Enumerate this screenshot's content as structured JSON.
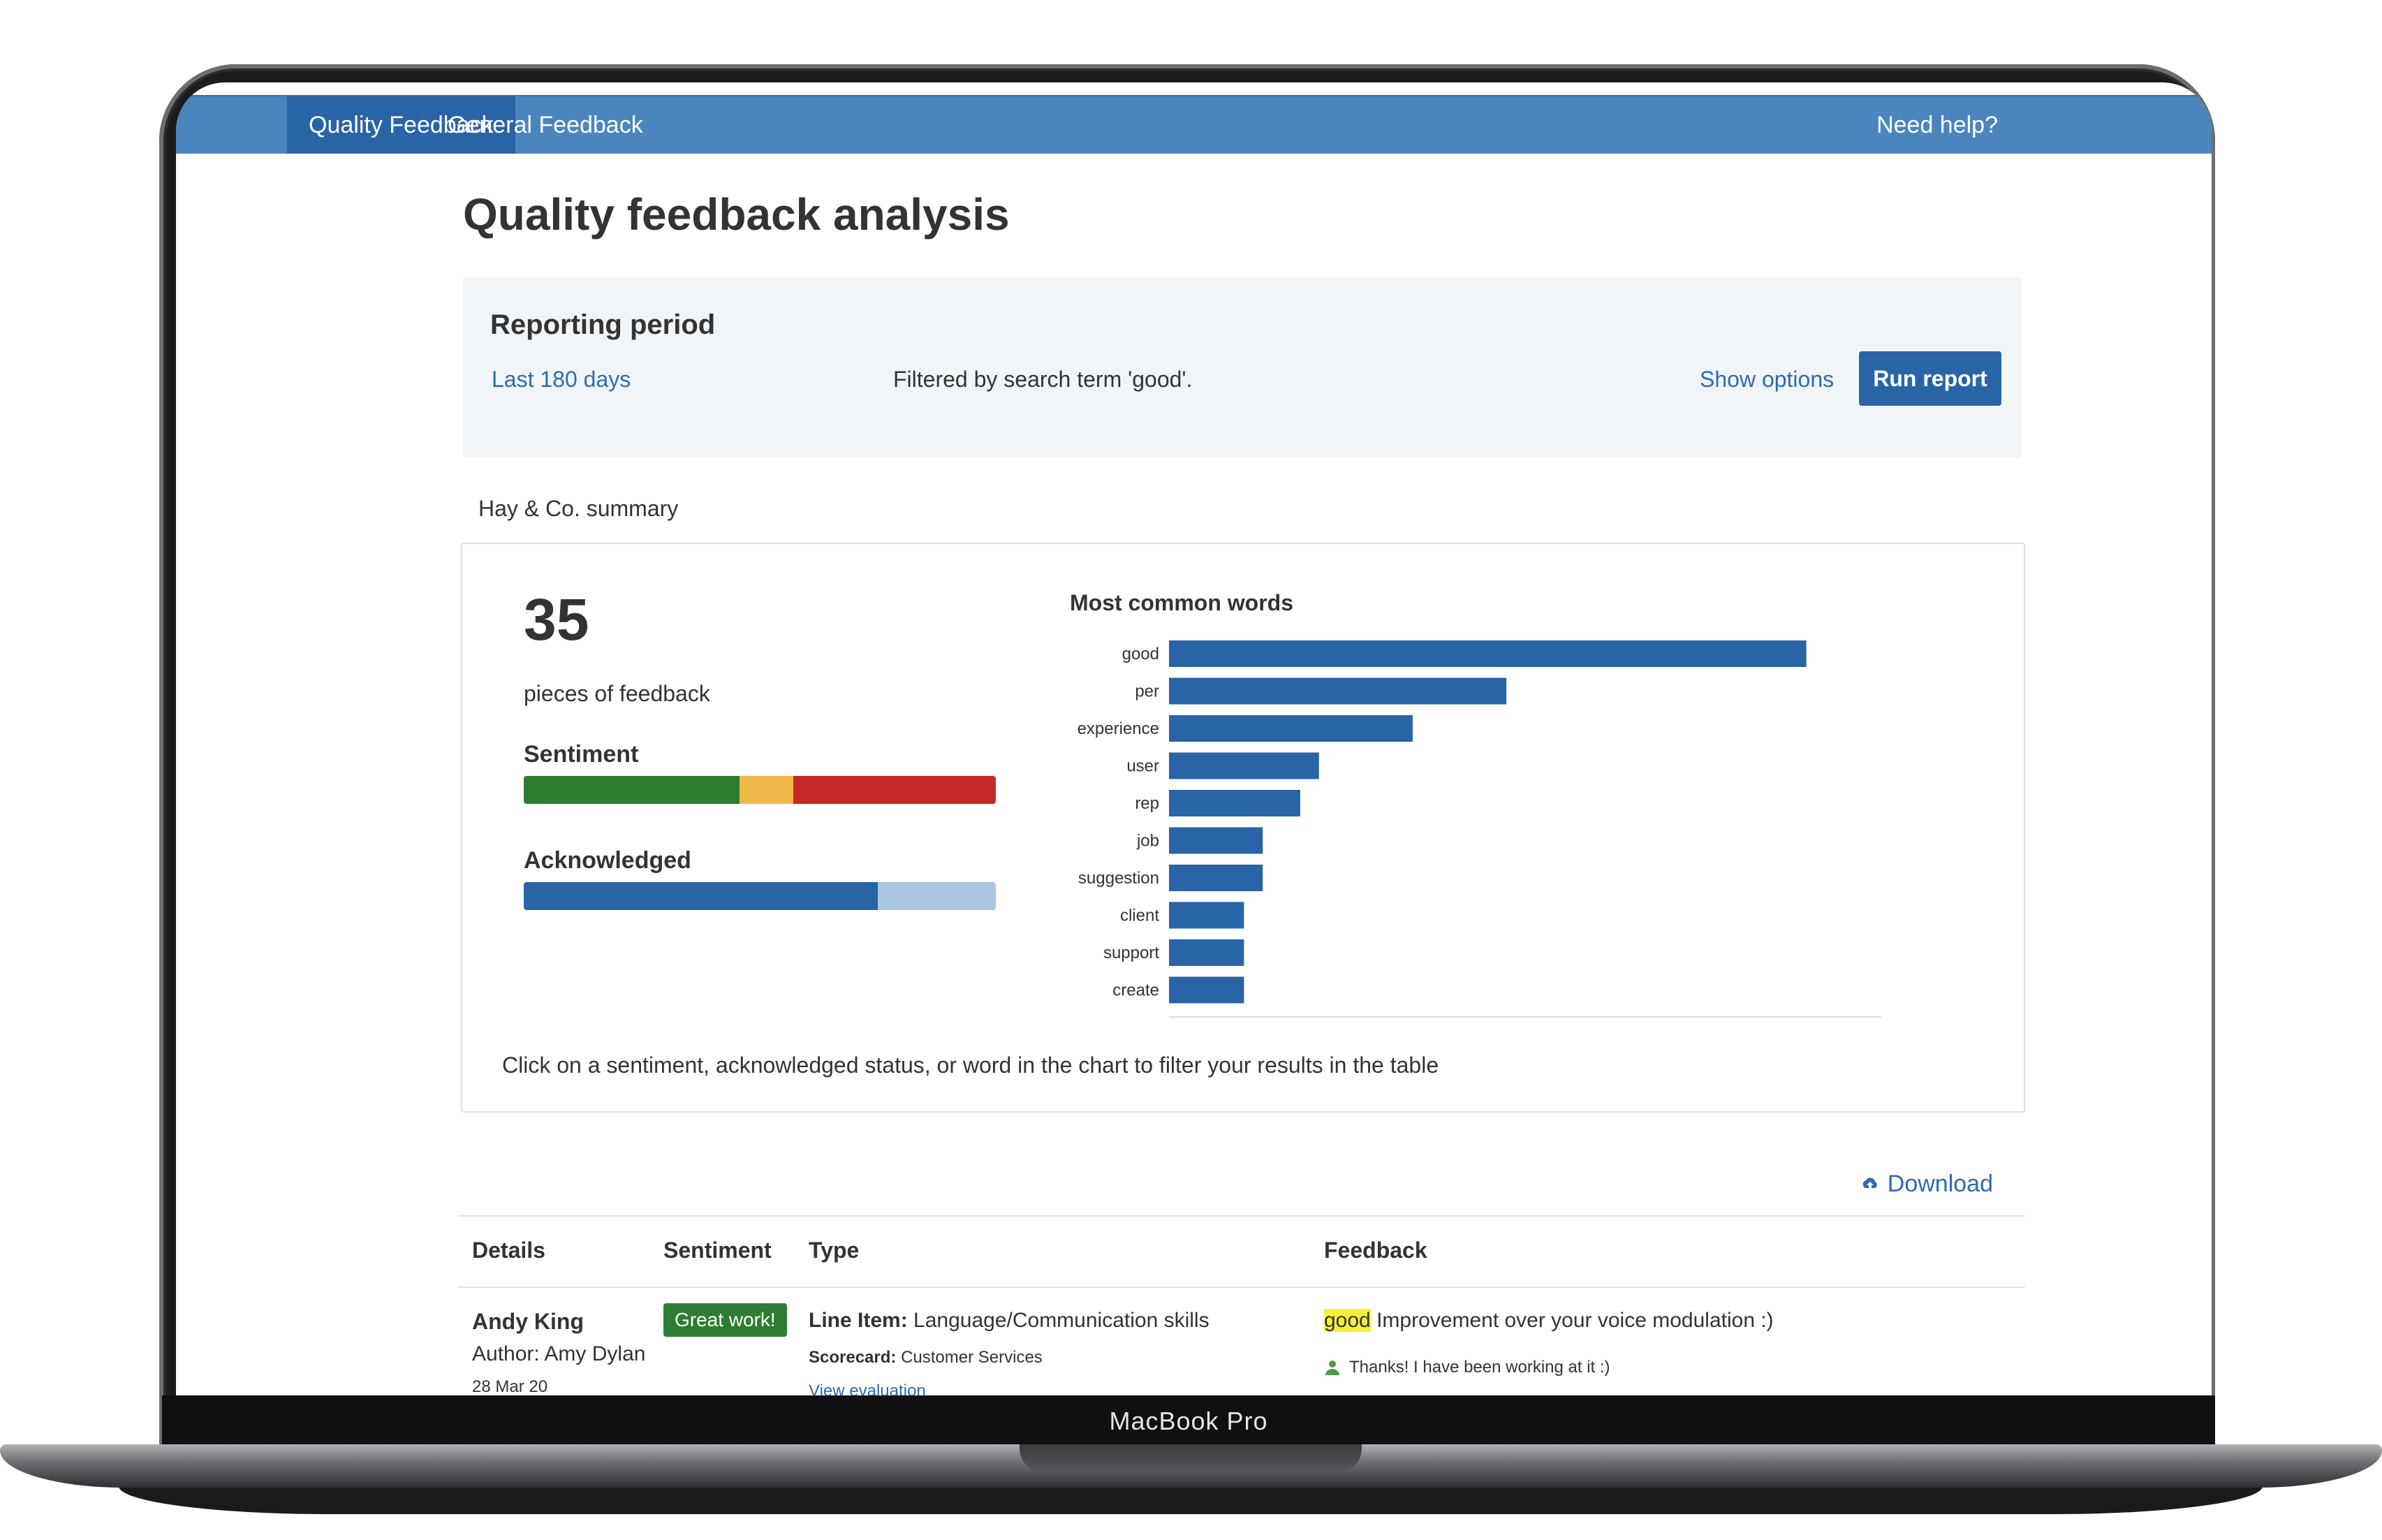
{
  "nav": {
    "tabs": [
      {
        "label": "Quality Feedback",
        "active": true
      },
      {
        "label": "General Feedback",
        "active": false
      }
    ],
    "help_label": "Need help?"
  },
  "page": {
    "title": "Quality feedback analysis"
  },
  "reporting": {
    "heading": "Reporting period",
    "period_label": "Last 180 days",
    "filter_text": "Filtered by search term 'good'.",
    "show_options_label": "Show options",
    "run_report_label": "Run report"
  },
  "summary": {
    "label": "Hay & Co. summary",
    "count": "35",
    "count_caption": "pieces of feedback",
    "sentiment_label": "Sentiment",
    "sentiment_fractions": {
      "positive": 0.457,
      "neutral": 0.114,
      "negative": 0.429
    },
    "acknowledged_label": "Acknowledged",
    "acknowledged_fraction": 0.75,
    "hint": "Click on a sentiment, acknowledged status, or word in the chart to filter your results in the table",
    "colors": {
      "positive": "#2e7d2e",
      "neutral": "#f1b84a",
      "negative": "#c62828",
      "acknowledged": "#2964a6",
      "unacknowledged": "#a9c7e2",
      "bar": "#2964a6"
    }
  },
  "chart_data": {
    "type": "bar",
    "orientation": "horizontal",
    "title": "Most common words",
    "categories": [
      "good",
      "per",
      "experience",
      "user",
      "rep",
      "job",
      "suggestion",
      "client",
      "support",
      "create"
    ],
    "values": [
      34,
      18,
      13,
      8,
      7,
      5,
      5,
      4,
      4,
      4
    ],
    "xlim": [
      0,
      38
    ],
    "grid": false,
    "legend": "none"
  },
  "download_label": "Download",
  "table": {
    "headers": [
      "Details",
      "Sentiment",
      "Type",
      "Feedback"
    ],
    "rows": [
      {
        "name": "Andy King",
        "author": "Author: Amy Dylan",
        "date": "28 Mar 20",
        "sentiment_badge": "Great work!",
        "type_label": "Line Item:",
        "type_value": "Language/Communication skills",
        "scorecard_label": "Scorecard:",
        "scorecard_value": "Customer Services",
        "view_link": "View evaluation",
        "feedback_highlight": "good",
        "feedback_text": " Improvement over your voice modulation :)",
        "reply": "Thanks! I have been working at it :)"
      }
    ]
  },
  "device": {
    "label": "MacBook Pro"
  }
}
